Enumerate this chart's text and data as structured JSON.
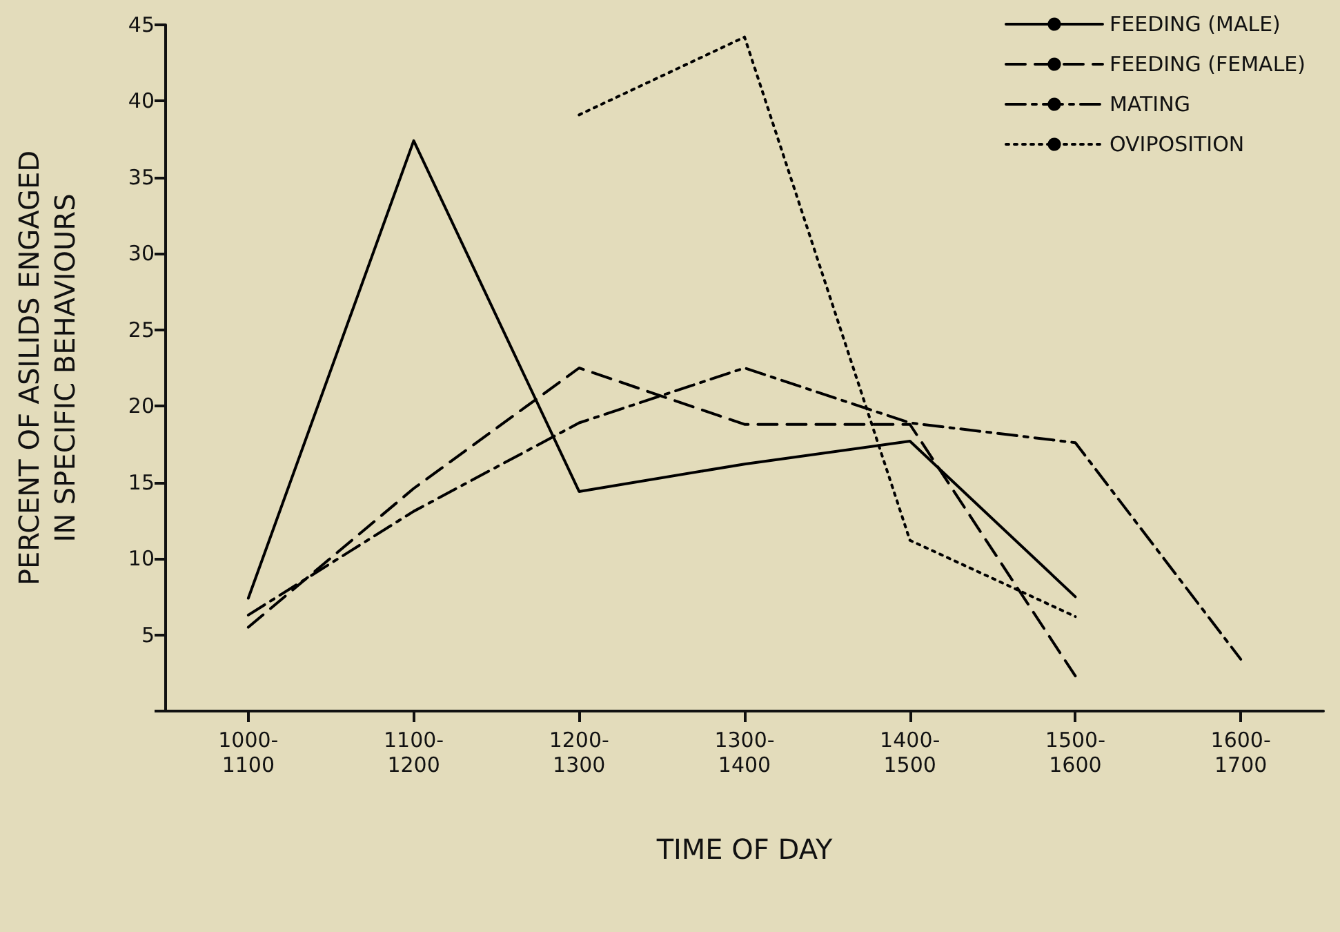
{
  "chart_data": {
    "type": "line",
    "xlabel": "TIME OF DAY",
    "ylabel": "PERCENT OF ASILIDS ENGAGED\nIN SPECIFIC BEHAVIOURS",
    "categories": [
      "1000-\n1100",
      "1100-\n1200",
      "1200-\n1300",
      "1300-\n1400",
      "1400-\n1500",
      "1500-\n1600",
      "1600-\n1700"
    ],
    "ylim": [
      0,
      45
    ],
    "yticks": [
      {
        "value": 0,
        "label": null
      },
      5,
      10,
      15,
      20,
      25,
      30,
      35,
      40,
      45
    ],
    "grid": false,
    "legend": "top right",
    "marker": "none",
    "series": [
      {
        "name": "FEEDING (MALE)",
        "color": "#000000",
        "line_style": "solid",
        "values": [
          7.4,
          37.4,
          14.4,
          16.2,
          17.7,
          7.5,
          null
        ]
      },
      {
        "name": "FEEDING (FEMALE)",
        "color": "#000000",
        "line_style": "dashed",
        "values": [
          5.5,
          14.6,
          22.5,
          18.8,
          18.8,
          2.3,
          null
        ]
      },
      {
        "name": "MATING",
        "color": "#000000",
        "line_style": "dashdot",
        "values": [
          6.3,
          13.1,
          18.9,
          22.5,
          18.9,
          17.6,
          3.4
        ]
      },
      {
        "name": "OVIPOSITION",
        "color": "#000000",
        "line_style": "dotted",
        "values": [
          null,
          null,
          39.1,
          44.2,
          11.2,
          6.2,
          null
        ]
      }
    ]
  }
}
